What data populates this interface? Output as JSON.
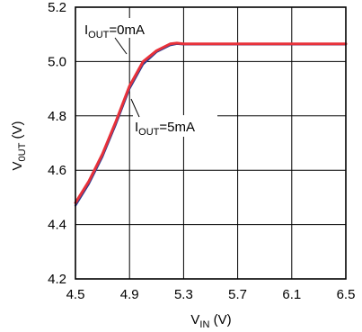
{
  "chart_data": {
    "type": "line",
    "xlabel": "V",
    "xlabel_sub": "IN",
    "xlabel_unit": " (V)",
    "ylabel": "V",
    "ylabel_sub": "0UT",
    "ylabel_unit": " (V)",
    "xlim": [
      4.5,
      6.5
    ],
    "ylim": [
      4.2,
      5.2
    ],
    "x_ticks": [
      "4.5",
      "4.9",
      "5.3",
      "5.7",
      "6.1",
      "6.5"
    ],
    "y_ticks": [
      "4.2",
      "4.4",
      "4.6",
      "4.8",
      "5.0",
      "5.2"
    ],
    "grid": true,
    "series": [
      {
        "name": "IOUT=0mA",
        "color": "#e8313a",
        "x": [
          4.5,
          4.6,
          4.7,
          4.8,
          4.9,
          5.0,
          5.1,
          5.2,
          5.25,
          5.3,
          5.4,
          5.6,
          6.0,
          6.5
        ],
        "y": [
          4.48,
          4.56,
          4.66,
          4.78,
          4.91,
          5.0,
          5.04,
          5.065,
          5.068,
          5.065,
          5.065,
          5.065,
          5.065,
          5.065
        ]
      },
      {
        "name": "IOUT=5mA",
        "color": "#2b3a8f",
        "x": [
          4.5,
          4.6,
          4.7,
          4.8,
          4.9,
          5.0,
          5.1,
          5.2,
          5.25,
          5.3,
          5.4,
          5.6,
          6.0,
          6.5
        ],
        "y": [
          4.47,
          4.55,
          4.65,
          4.77,
          4.9,
          4.99,
          5.035,
          5.06,
          5.065,
          5.063,
          5.063,
          5.063,
          5.063,
          5.063
        ]
      }
    ],
    "annotations": [
      {
        "main": "I",
        "sub": "OUT",
        "rest": "=0mA"
      },
      {
        "main": "I",
        "sub": "OUT",
        "rest": "=5mA"
      }
    ]
  }
}
